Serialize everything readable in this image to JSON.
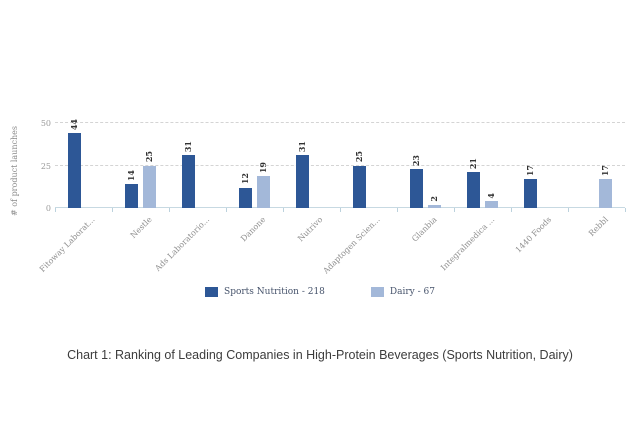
{
  "caption": "Chart 1: Ranking of Leading Companies in High-Protein Beverages (Sports Nutrition, Dairy)",
  "colors": {
    "sports_nutrition": "#2d5796",
    "dairy": "#a3b8d9",
    "gridline": "#d4d4d4",
    "axis_line": "#bcd2dd",
    "value_label": "#333333",
    "category_label": "#8f8f8f",
    "legend_text": "#46536b"
  },
  "chart_data": {
    "type": "bar",
    "title": "",
    "xlabel": "",
    "ylabel": "# of product launches",
    "ylim": [
      0,
      50
    ],
    "yticks": [
      0,
      25,
      50
    ],
    "grid": "horizontal dashed at 25 and 50",
    "legend_position": "bottom",
    "categories": [
      "Fitoway Laborat...",
      "Nestle",
      "Ads Laboratorio...",
      "Danone",
      "Nutrivo",
      "Adaptogen Scien...",
      "Glanbia",
      "Integralmedica ...",
      "1440 Foods",
      "Rebbl"
    ],
    "series": [
      {
        "name": "Sports Nutrition",
        "total": 218,
        "legend_label": "Sports Nutrition - 218",
        "color": "#2d5796",
        "values": [
          44,
          14,
          31,
          12,
          31,
          25,
          23,
          21,
          17,
          null
        ]
      },
      {
        "name": "Dairy",
        "total": 67,
        "legend_label": "Dairy - 67",
        "color": "#a3b8d9",
        "values": [
          null,
          25,
          null,
          19,
          null,
          null,
          2,
          4,
          null,
          17
        ]
      }
    ]
  }
}
